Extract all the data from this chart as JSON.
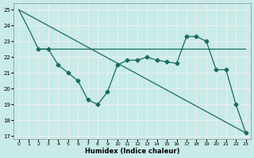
{
  "xlabel": "Humidex (Indice chaleur)",
  "xlim": [
    -0.5,
    23.5
  ],
  "ylim": [
    16.8,
    25.4
  ],
  "yticks": [
    17,
    18,
    19,
    20,
    21,
    22,
    23,
    24,
    25
  ],
  "xticks": [
    0,
    1,
    2,
    3,
    4,
    5,
    6,
    7,
    8,
    9,
    10,
    11,
    12,
    13,
    14,
    15,
    16,
    17,
    18,
    19,
    20,
    21,
    22,
    23
  ],
  "bg_color": "#c8ebe8",
  "line_color": "#1a6b60",
  "grid_color": "#f0f0f0",
  "line_smooth": {
    "x": [
      0,
      1,
      2,
      3,
      4,
      5,
      6,
      7,
      8,
      9,
      10,
      11,
      12,
      13,
      14,
      15,
      16,
      17,
      18,
      19,
      20,
      21,
      22,
      23
    ],
    "y": [
      25.0,
      23.8,
      22.5,
      22.5,
      22.5,
      22.5,
      22.5,
      22.5,
      22.5,
      22.5,
      22.5,
      22.5,
      22.5,
      22.5,
      22.5,
      22.5,
      22.5,
      22.5,
      22.5,
      22.5,
      22.5,
      22.5,
      22.5,
      22.5
    ]
  },
  "line_diagonal": {
    "x": [
      0,
      23
    ],
    "y": [
      25.0,
      17.2
    ]
  },
  "line_markers": {
    "x": [
      2,
      3,
      4,
      5,
      6,
      7,
      8,
      9,
      10,
      11,
      12,
      13,
      14,
      15,
      16,
      17,
      18,
      19,
      20,
      21,
      22,
      23
    ],
    "y": [
      22.5,
      22.5,
      21.5,
      21.0,
      20.5,
      19.3,
      19.0,
      19.8,
      21.5,
      21.8,
      21.8,
      22.0,
      21.8,
      21.7,
      21.6,
      23.3,
      23.3,
      23.0,
      21.2,
      21.2,
      19.0,
      17.2
    ]
  }
}
